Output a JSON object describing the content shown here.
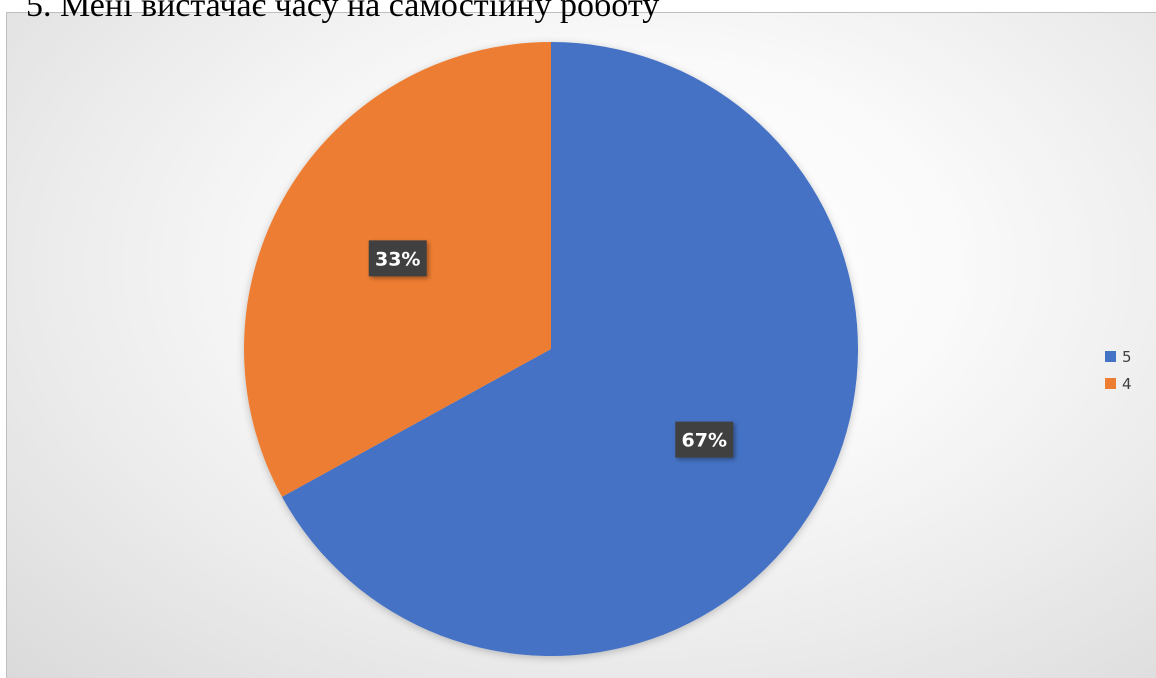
{
  "caption": "5. Мені вистачає часу на самостійну роботу",
  "chart_data": {
    "type": "pie",
    "start_angle_deg": 0,
    "direction": "clockwise",
    "slices": [
      {
        "label": "5",
        "value": 67,
        "data_label": "67%",
        "color": "#4472c4"
      },
      {
        "label": "4",
        "value": 33,
        "data_label": "33%",
        "color": "#ed7d31"
      }
    ],
    "legend_placement": "right",
    "data_label_style": {
      "background": "#404040",
      "text_color": "#ffffff"
    }
  }
}
